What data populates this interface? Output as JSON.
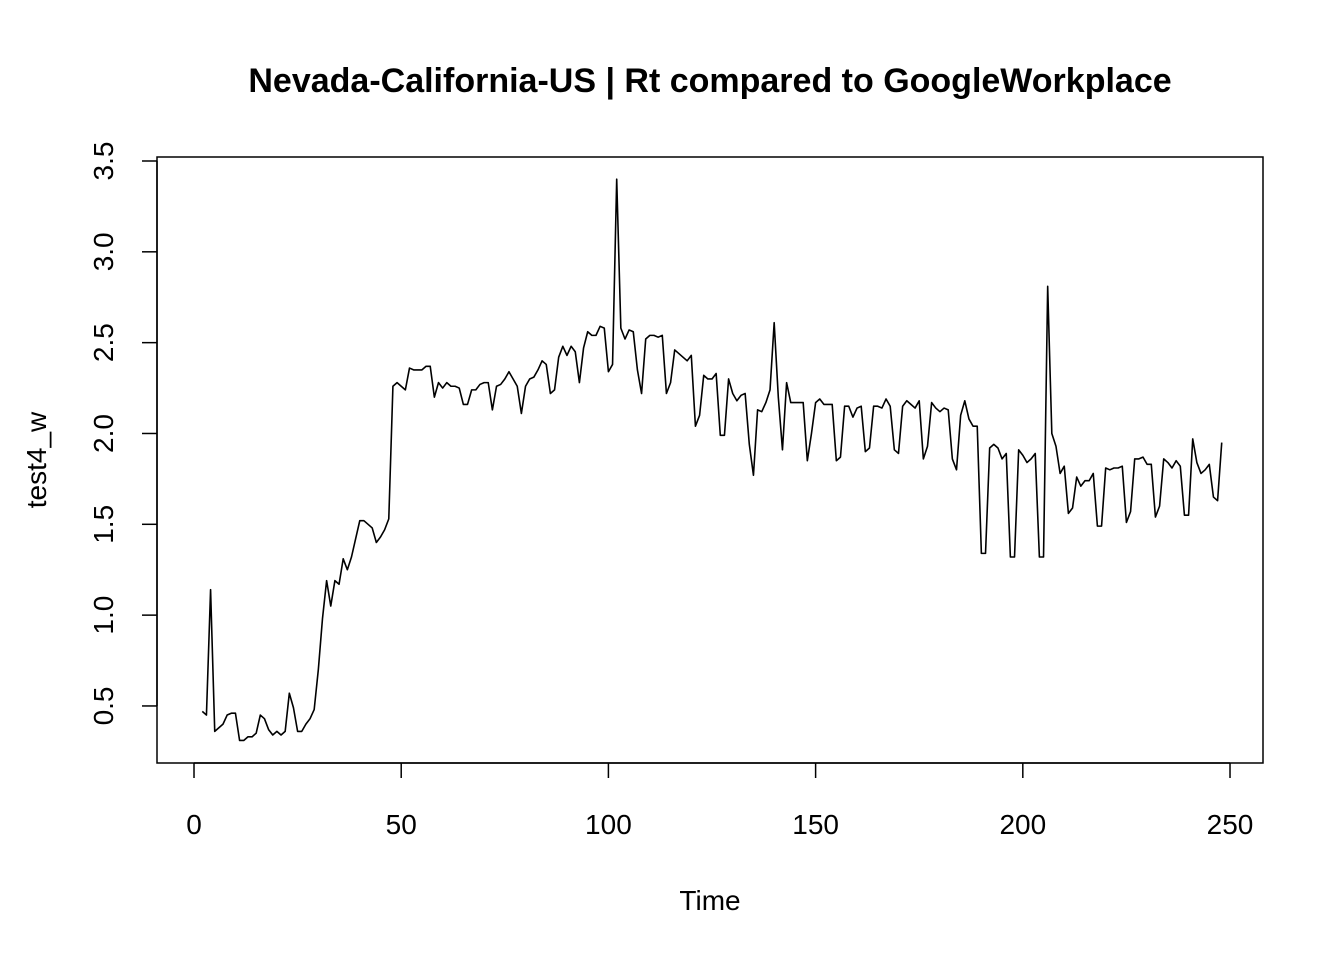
{
  "chart_data": {
    "type": "line",
    "title": "Nevada-California-US | Rt compared to GoogleWorkplace",
    "x_label": "Time",
    "y_label": "test4_w",
    "x": [
      2,
      3,
      4,
      5,
      6,
      7,
      8,
      9,
      10,
      11,
      12,
      13,
      14,
      15,
      16,
      17,
      18,
      19,
      20,
      21,
      22,
      23,
      24,
      25,
      26,
      27,
      28,
      29,
      30,
      31,
      32,
      33,
      34,
      35,
      36,
      37,
      38,
      39,
      40,
      41,
      42,
      43,
      44,
      45,
      46,
      47,
      48,
      49,
      50,
      51,
      52,
      53,
      54,
      55,
      56,
      57,
      58,
      59,
      60,
      61,
      62,
      63,
      64,
      65,
      66,
      67,
      68,
      69,
      70,
      71,
      72,
      73,
      74,
      75,
      76,
      77,
      78,
      79,
      80,
      81,
      82,
      83,
      84,
      85,
      86,
      87,
      88,
      89,
      90,
      91,
      92,
      93,
      94,
      95,
      96,
      97,
      98,
      99,
      100,
      101,
      102,
      103,
      104,
      105,
      106,
      107,
      108,
      109,
      110,
      111,
      112,
      113,
      114,
      115,
      116,
      117,
      118,
      119,
      120,
      121,
      122,
      123,
      124,
      125,
      126,
      127,
      128,
      129,
      130,
      131,
      132,
      133,
      134,
      135,
      136,
      137,
      138,
      139,
      140,
      141,
      142,
      143,
      144,
      145,
      146,
      147,
      148,
      149,
      150,
      151,
      152,
      153,
      154,
      155,
      156,
      157,
      158,
      159,
      160,
      161,
      162,
      163,
      164,
      165,
      166,
      167,
      168,
      169,
      170,
      171,
      172,
      173,
      174,
      175,
      176,
      177,
      178,
      179,
      180,
      181,
      182,
      183,
      184,
      185,
      186,
      187,
      188,
      189,
      190,
      191,
      192,
      193,
      194,
      195,
      196,
      197,
      198,
      199,
      200,
      201,
      202,
      203,
      204,
      205,
      206,
      207,
      208,
      209,
      210,
      211,
      212,
      213,
      214,
      215,
      216,
      217,
      218,
      219,
      220,
      221,
      222,
      223,
      224,
      225,
      226,
      227,
      228,
      229,
      230,
      231,
      232,
      233,
      234,
      235,
      236,
      237,
      238,
      239,
      240,
      241,
      242,
      243,
      244,
      245,
      246,
      247,
      248
    ],
    "series": [
      {
        "name": "test4_w",
        "color": "#000000",
        "values": [
          0.47,
          0.45,
          1.14,
          0.36,
          0.38,
          0.4,
          0.45,
          0.46,
          0.46,
          0.31,
          0.31,
          0.33,
          0.33,
          0.35,
          0.45,
          0.43,
          0.37,
          0.34,
          0.36,
          0.34,
          0.36,
          0.57,
          0.49,
          0.36,
          0.36,
          0.4,
          0.43,
          0.48,
          0.7,
          0.98,
          1.19,
          1.05,
          1.19,
          1.17,
          1.31,
          1.25,
          1.32,
          1.42,
          1.52,
          1.52,
          1.5,
          1.48,
          1.4,
          1.43,
          1.47,
          1.53,
          2.26,
          2.28,
          2.26,
          2.24,
          2.36,
          2.35,
          2.35,
          2.35,
          2.37,
          2.37,
          2.2,
          2.28,
          2.25,
          2.28,
          2.26,
          2.26,
          2.25,
          2.16,
          2.16,
          2.24,
          2.24,
          2.27,
          2.28,
          2.28,
          2.13,
          2.26,
          2.27,
          2.3,
          2.34,
          2.3,
          2.26,
          2.11,
          2.26,
          2.3,
          2.31,
          2.35,
          2.4,
          2.38,
          2.22,
          2.24,
          2.42,
          2.48,
          2.43,
          2.48,
          2.45,
          2.28,
          2.47,
          2.56,
          2.54,
          2.54,
          2.59,
          2.58,
          2.34,
          2.38,
          3.4,
          2.58,
          2.52,
          2.57,
          2.56,
          2.35,
          2.22,
          2.52,
          2.54,
          2.54,
          2.53,
          2.54,
          2.22,
          2.28,
          2.46,
          2.44,
          2.42,
          2.4,
          2.43,
          2.04,
          2.1,
          2.32,
          2.3,
          2.3,
          2.33,
          1.99,
          1.99,
          2.3,
          2.22,
          2.18,
          2.21,
          2.22,
          1.94,
          1.77,
          2.13,
          2.12,
          2.17,
          2.24,
          2.61,
          2.2,
          1.91,
          2.28,
          2.17,
          2.17,
          2.17,
          2.17,
          1.85,
          2.0,
          2.17,
          2.19,
          2.16,
          2.16,
          2.16,
          1.85,
          1.87,
          2.15,
          2.15,
          2.09,
          2.14,
          2.15,
          1.9,
          1.92,
          2.15,
          2.15,
          2.14,
          2.19,
          2.15,
          1.91,
          1.89,
          2.15,
          2.18,
          2.16,
          2.14,
          2.18,
          1.86,
          1.93,
          2.17,
          2.14,
          2.12,
          2.14,
          2.13,
          1.86,
          1.8,
          2.1,
          2.18,
          2.08,
          2.04,
          2.04,
          1.34,
          1.34,
          1.92,
          1.94,
          1.92,
          1.86,
          1.89,
          1.32,
          1.32,
          1.91,
          1.88,
          1.84,
          1.86,
          1.89,
          1.32,
          1.32,
          2.81,
          2.0,
          1.93,
          1.78,
          1.82,
          1.56,
          1.59,
          1.76,
          1.71,
          1.74,
          1.74,
          1.78,
          1.49,
          1.49,
          1.81,
          1.8,
          1.81,
          1.81,
          1.82,
          1.51,
          1.57,
          1.86,
          1.86,
          1.87,
          1.83,
          1.83,
          1.54,
          1.6,
          1.86,
          1.84,
          1.81,
          1.85,
          1.82,
          1.55,
          1.55,
          1.97,
          1.84,
          1.78,
          1.8,
          1.83,
          1.65,
          1.63,
          1.95
        ]
      }
    ],
    "xlim": [
      -8.93,
      257.96
    ],
    "ylim": [
      0.186,
      3.522
    ],
    "xticks": [
      0,
      50,
      100,
      150,
      200,
      250
    ],
    "yticks": [
      0.5,
      {
        "value": 1,
        "label": "1.0"
      },
      1.5,
      {
        "value": 2,
        "label": "2.0"
      },
      2.5,
      {
        "value": 3,
        "label": "3.0"
      },
      3.5
    ]
  }
}
